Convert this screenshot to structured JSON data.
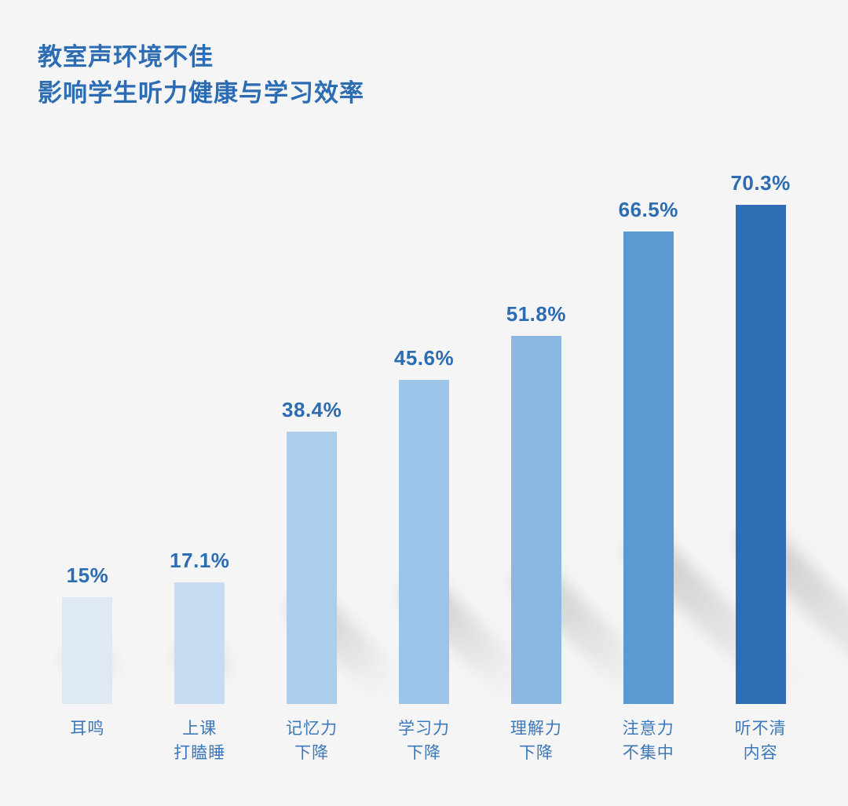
{
  "title": {
    "line1": "教室声环境不佳",
    "line2": "影响学生听力健康与学习效率"
  },
  "chart_data": {
    "type": "bar",
    "title": "教室声环境不佳 影响学生听力健康与学习效率",
    "categories": [
      "耳鸣",
      "上课打瞌睡",
      "记忆力下降",
      "学习力下降",
      "理解力下降",
      "注意力不集中",
      "听不清内容"
    ],
    "category_lines": [
      [
        "耳鸣"
      ],
      [
        "上课",
        "打瞌睡"
      ],
      [
        "记忆力",
        "下降"
      ],
      [
        "学习力",
        "下降"
      ],
      [
        "理解力",
        "下降"
      ],
      [
        "注意力",
        "不集中"
      ],
      [
        "听不清",
        "内容"
      ]
    ],
    "values": [
      15,
      17.1,
      38.4,
      45.6,
      51.8,
      66.5,
      70.3
    ],
    "value_labels": [
      "15%",
      "17.1%",
      "38.4%",
      "45.6%",
      "51.8%",
      "66.5%",
      "70.3%"
    ],
    "bar_colors": [
      "#dee9f5",
      "#c7dcf2",
      "#adcdec",
      "#9cc4e9",
      "#8ab8e3",
      "#5b99d3",
      "#2e6cb4"
    ],
    "xlabel": "",
    "ylabel": "",
    "ylim": [
      0,
      75
    ],
    "grid": false,
    "legend": "none"
  },
  "colors": {
    "title": "#2c6cb3",
    "value_label": "#2c6cb3",
    "category_label": "#3d78ba",
    "background": "#f5f5f6",
    "shadow": "#828282"
  }
}
